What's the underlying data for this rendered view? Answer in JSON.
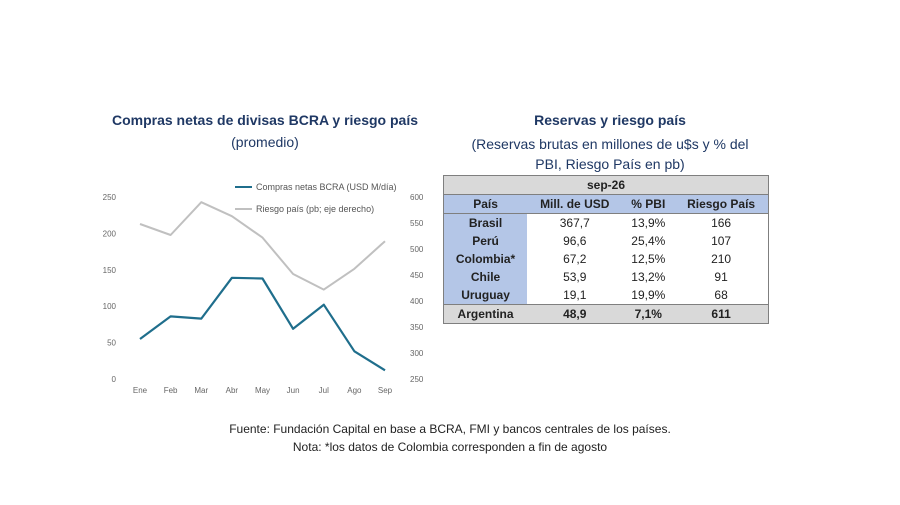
{
  "left_chart": {
    "title": "Compras netas de divisas BCRA y riesgo país",
    "subtitle": "(promedio)"
  },
  "chart_data": {
    "type": "line",
    "categories": [
      "Ene",
      "Feb",
      "Mar",
      "Abr",
      "May",
      "Jun",
      "Jul",
      "Ago",
      "Sep"
    ],
    "series": [
      {
        "name": "Compras netas BCRA (USD M/día)",
        "axis": "left",
        "color": "#1f6e8c",
        "values": [
          55,
          86,
          83,
          139,
          138,
          69,
          102,
          38,
          12
        ]
      },
      {
        "name": "Riesgo país (pb; eje derecho)",
        "axis": "right",
        "color": "#c0c0c0",
        "values": [
          548,
          527,
          590,
          563,
          522,
          452,
          422,
          462,
          515
        ]
      }
    ],
    "y_left": {
      "ylim": [
        0,
        250
      ],
      "ticks": [
        "0",
        "50",
        "100",
        "150",
        "200",
        "250"
      ]
    },
    "y_right": {
      "ylim": [
        250,
        600
      ],
      "ticks": [
        "250",
        "300",
        "350",
        "400",
        "450",
        "500",
        "550",
        "600"
      ]
    },
    "grid": false,
    "legend_position": "top-right"
  },
  "right_table": {
    "title": "Reservas y riesgo país",
    "subtitle_line1": "(Reservas brutas en millones de u$s y % del",
    "subtitle_line2": "PBI, Riesgo País en pb)",
    "period": "sep-26",
    "columns": [
      "País",
      "Mill. de USD",
      "% PBI",
      "Riesgo País"
    ],
    "rows": [
      [
        "Brasil",
        "367,7",
        "13,9%",
        "166"
      ],
      [
        "Perú",
        "96,6",
        "25,4%",
        "107"
      ],
      [
        "Colombia*",
        "67,2",
        "12,5%",
        "210"
      ],
      [
        "Chile",
        "53,9",
        "13,2%",
        "91"
      ],
      [
        "Uruguay",
        "19,1",
        "19,9%",
        "68"
      ]
    ],
    "highlight_row": [
      "Argentina",
      "48,9",
      "7,1%",
      "611"
    ]
  },
  "footer": {
    "source": "Fuente: Fundación Capital en base a BCRA, FMI y bancos centrales de los países.",
    "note": "Nota: *los datos de Colombia corresponden a fin de agosto"
  },
  "colors": {
    "title": "#1f3864",
    "table_header": "#b4c6e7",
    "table_highlight": "#d9d9d9"
  }
}
